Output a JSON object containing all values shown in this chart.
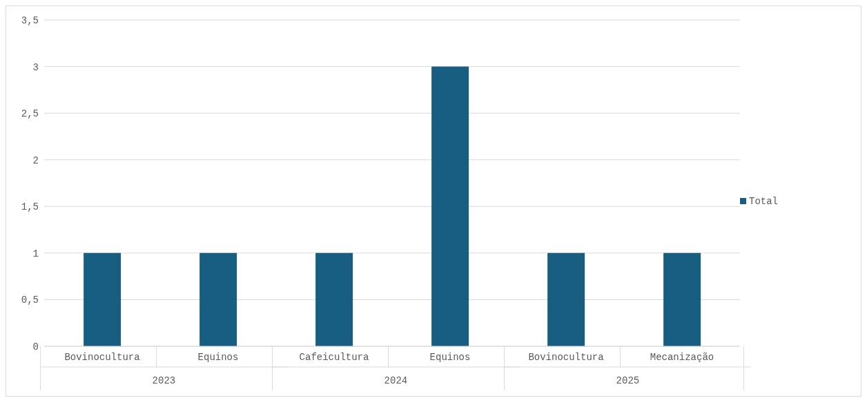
{
  "chart_data": {
    "type": "bar",
    "categories": [
      "Bovinocultura",
      "Equinos",
      "Cafeicultura",
      "Equinos",
      "Bovinocultura",
      "Mecanização"
    ],
    "series": [
      {
        "name": "Total",
        "color": "#175e82",
        "values": [
          1,
          1,
          1,
          3,
          1,
          1
        ]
      }
    ],
    "annotations": [
      "2023",
      "2024",
      "2025"
    ],
    "ylim": [
      0,
      3.5
    ],
    "yticks": [
      0,
      {
        "value": 0.5,
        "label": "0,5"
      },
      1,
      {
        "value": 1.5,
        "label": "1,5"
      },
      2,
      {
        "value": 2.5,
        "label": "2,5"
      },
      3,
      {
        "value": 3.5,
        "label": "3,5"
      }
    ],
    "grid": "y",
    "legend": "right"
  }
}
